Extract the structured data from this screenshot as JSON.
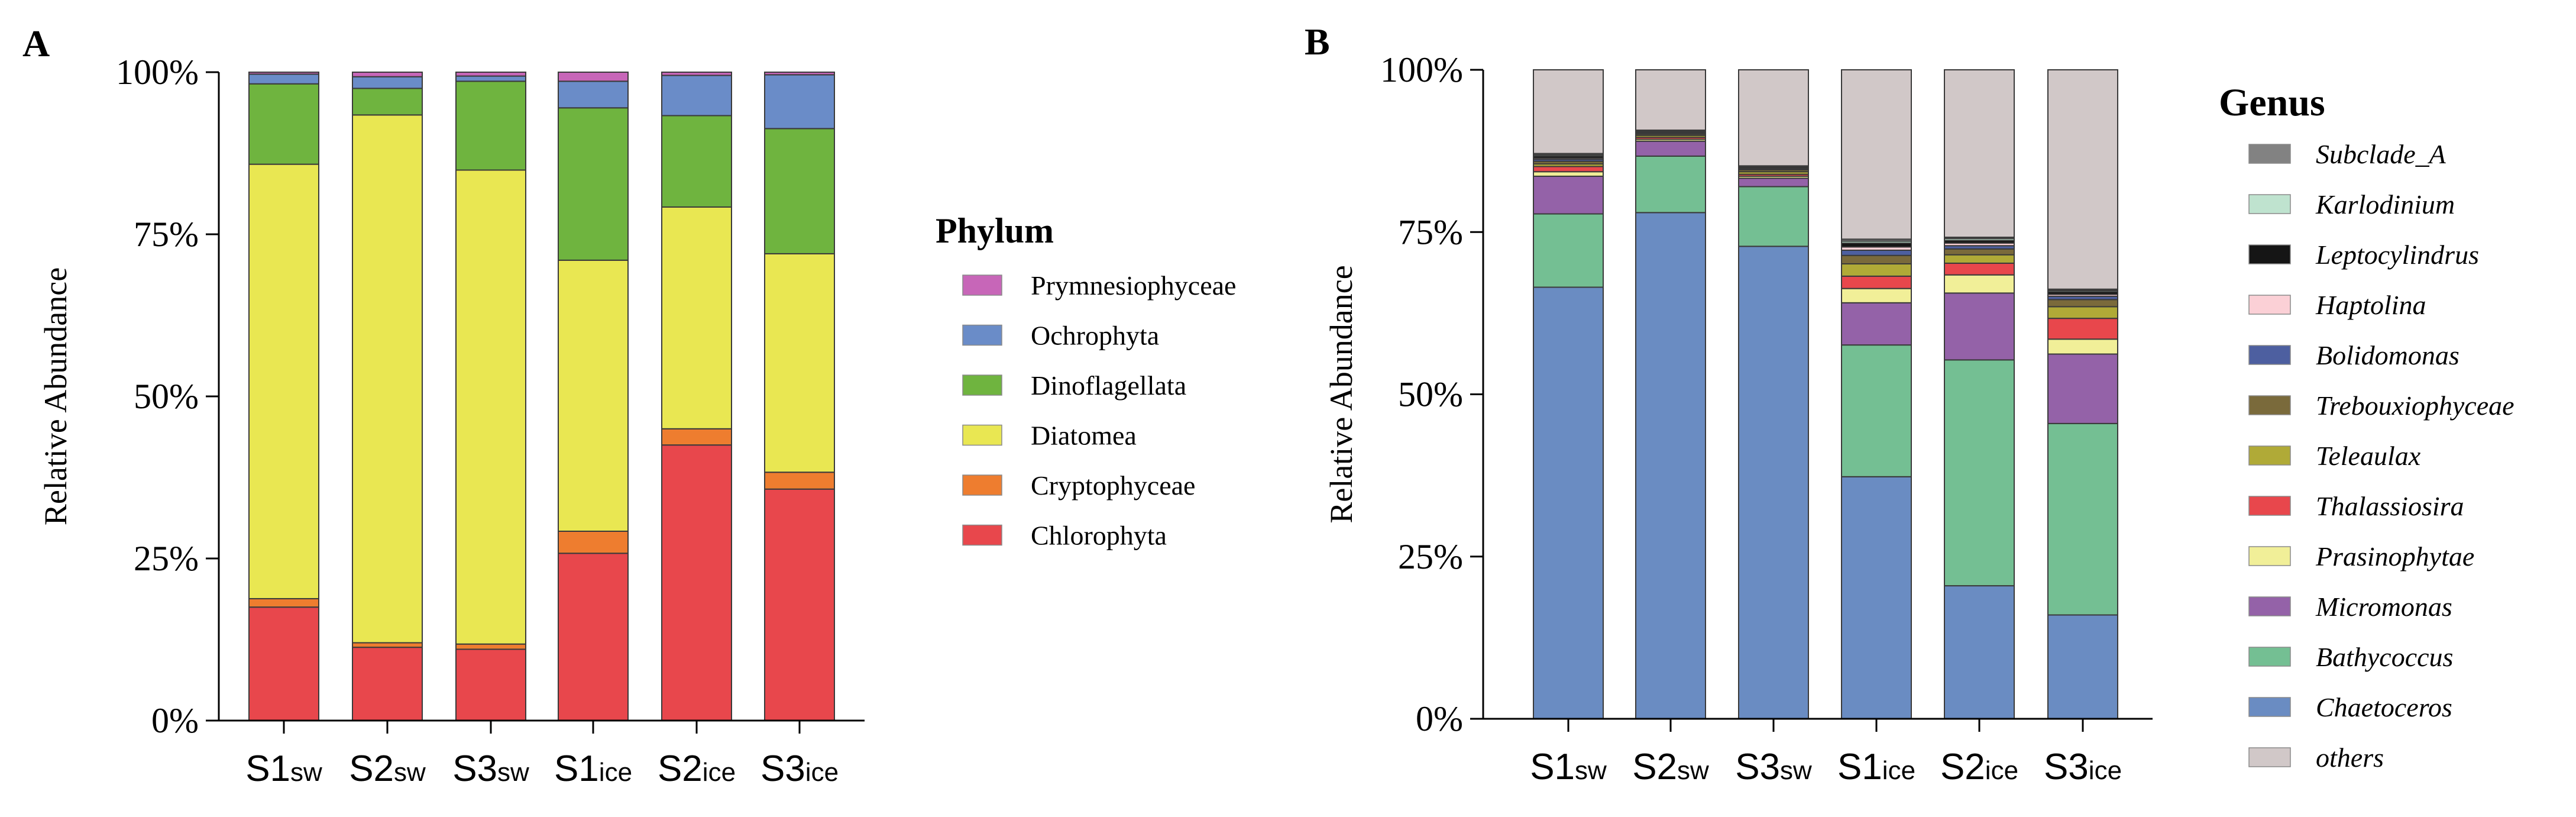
{
  "chart_data": [
    {
      "panel_label": "A",
      "type": "bar",
      "stacked": true,
      "ylabel": "Relative Abundance",
      "ylim": [
        0,
        100
      ],
      "yticks": [
        "0%",
        "25%",
        "50%",
        "75%",
        "100%"
      ],
      "ytick_values": [
        0,
        25,
        50,
        75,
        100
      ],
      "categories": [
        {
          "main": "S1",
          "sub": "sw"
        },
        {
          "main": "S2",
          "sub": "sw"
        },
        {
          "main": "S3",
          "sub": "sw"
        },
        {
          "main": "S1",
          "sub": "ice"
        },
        {
          "main": "S2",
          "sub": "ice"
        },
        {
          "main": "S3",
          "sub": "ice"
        }
      ],
      "legend_title": "Phylum",
      "legend_position": "right",
      "legend_order": [
        "Prymnesiophyceae",
        "Ochrophyta",
        "Dinoflagellata",
        "Diatomea",
        "Cryptophyceae",
        "Chlorophyta"
      ],
      "series": [
        {
          "name": "Chlorophyta",
          "color": "#e8474c",
          "values": [
            17.5,
            11.3,
            11.0,
            25.8,
            42.5,
            35.7
          ]
        },
        {
          "name": "Cryptophyceae",
          "color": "#ee7d2f",
          "values": [
            1.3,
            0.7,
            0.8,
            3.4,
            2.5,
            2.6
          ]
        },
        {
          "name": "Diatomea",
          "color": "#e9e752",
          "values": [
            67.0,
            81.4,
            73.1,
            41.8,
            34.2,
            33.7
          ]
        },
        {
          "name": "Dinoflagellata",
          "color": "#6fb43f",
          "values": [
            12.4,
            4.1,
            13.7,
            23.5,
            14.1,
            19.3
          ]
        },
        {
          "name": "Ochrophyta",
          "color": "#6a8cc8",
          "values": [
            1.5,
            1.8,
            0.8,
            4.1,
            6.2,
            8.3
          ]
        },
        {
          "name": "Prymnesiophyceae",
          "color": "#c766b8",
          "values": [
            0.3,
            0.7,
            0.6,
            1.4,
            0.5,
            0.4
          ]
        }
      ]
    },
    {
      "panel_label": "B",
      "type": "bar",
      "stacked": true,
      "ylabel": "Relative Abundance",
      "ylim": [
        0,
        100
      ],
      "yticks": [
        "0%",
        "25%",
        "50%",
        "75%",
        "100%"
      ],
      "ytick_values": [
        0,
        25,
        50,
        75,
        100
      ],
      "categories": [
        {
          "main": "S1",
          "sub": "sw"
        },
        {
          "main": "S2",
          "sub": "sw"
        },
        {
          "main": "S3",
          "sub": "sw"
        },
        {
          "main": "S1",
          "sub": "ice"
        },
        {
          "main": "S2",
          "sub": "ice"
        },
        {
          "main": "S3",
          "sub": "ice"
        }
      ],
      "legend_title": "Genus",
      "legend_position": "right",
      "legend_order": [
        "Subclade_A",
        "Karlodinium",
        "Leptocylindrus",
        "Haptolina",
        "Bolidomonas",
        "Trebouxiophyceae",
        "Teleaulax",
        "Thalassiosira",
        "Prasinophytae",
        "Micromonas",
        "Bathycoccus",
        "Chaetoceros",
        "others"
      ],
      "series": [
        {
          "name": "Chaetoceros",
          "color": "#6a8cc2",
          "values": [
            66.5,
            78.0,
            72.8,
            37.3,
            20.5,
            16.0
          ]
        },
        {
          "name": "Bathycoccus",
          "color": "#74bf93",
          "values": [
            11.3,
            8.7,
            9.2,
            20.3,
            34.8,
            29.5
          ]
        },
        {
          "name": "Micromonas",
          "color": "#9462a8",
          "values": [
            5.8,
            2.3,
            1.3,
            6.5,
            10.3,
            10.7
          ]
        },
        {
          "name": "Prasinophytae",
          "color": "#f1ef98",
          "values": [
            0.7,
            0.3,
            0.3,
            2.2,
            2.8,
            2.3
          ]
        },
        {
          "name": "Thalassiosira",
          "color": "#e8474c",
          "values": [
            0.8,
            0.3,
            0.3,
            1.9,
            1.8,
            3.2
          ]
        },
        {
          "name": "Teleaulax",
          "color": "#b0aa37",
          "values": [
            0.4,
            0.3,
            0.4,
            1.9,
            1.3,
            1.8
          ]
        },
        {
          "name": "Trebouxiophyceae",
          "color": "#7a6a3b",
          "values": [
            0.4,
            0.2,
            0.3,
            1.3,
            0.9,
            1.1
          ]
        },
        {
          "name": "Bolidomonas",
          "color": "#4d5fa0",
          "values": [
            0.3,
            0.1,
            0.1,
            0.8,
            0.5,
            0.5
          ]
        },
        {
          "name": "Haptolina",
          "color": "#fbd0d6",
          "values": [
            0.2,
            0.1,
            0.1,
            0.5,
            0.4,
            0.3
          ]
        },
        {
          "name": "Leptocylindrus",
          "color": "#151515",
          "values": [
            0.3,
            0.2,
            0.2,
            0.6,
            0.4,
            0.4
          ]
        },
        {
          "name": "Karlodinium",
          "color": "#bfe3cf",
          "values": [
            0.2,
            0.1,
            0.1,
            0.3,
            0.3,
            0.2
          ]
        },
        {
          "name": "Subclade_A",
          "color": "#828282",
          "values": [
            0.2,
            0.1,
            0.1,
            0.3,
            0.2,
            0.2
          ]
        },
        {
          "name": "others",
          "color": "#d1c8c8",
          "values": [
            12.9,
            9.3,
            14.8,
            26.1,
            25.8,
            33.8
          ]
        }
      ]
    }
  ]
}
